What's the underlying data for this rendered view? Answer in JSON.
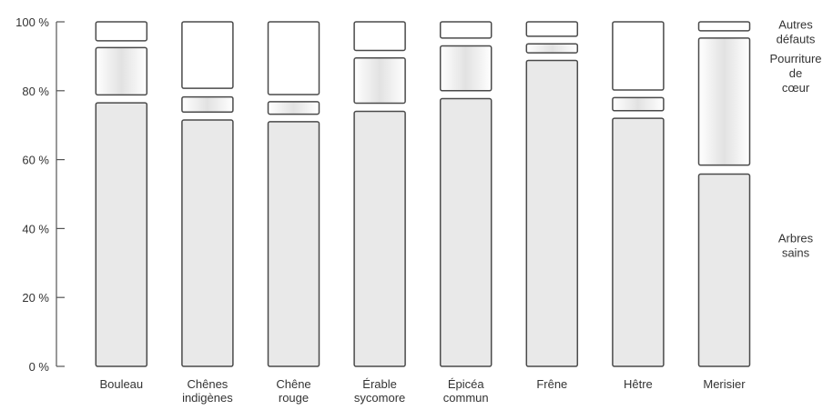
{
  "chart_data": {
    "type": "bar",
    "stacked": true,
    "categories": [
      "Bouleau",
      "Chênes indigènes",
      "Chêne rouge",
      "Érable sycomore",
      "Épicéa commun",
      "Frêne",
      "Hêtre",
      "Merisier"
    ],
    "segments": [
      [
        {
          "from": 0,
          "to": 76.5,
          "kind": "solid"
        },
        {
          "from": 78.8,
          "to": 92.5,
          "kind": "gradient"
        },
        {
          "from": 94.5,
          "to": 100,
          "kind": "open"
        }
      ],
      [
        {
          "from": 0,
          "to": 71.5,
          "kind": "solid"
        },
        {
          "from": 73.8,
          "to": 78.2,
          "kind": "gradient"
        },
        {
          "from": 80.7,
          "to": 100,
          "kind": "open"
        }
      ],
      [
        {
          "from": 0,
          "to": 71.0,
          "kind": "solid"
        },
        {
          "from": 73.2,
          "to": 76.8,
          "kind": "gradient"
        },
        {
          "from": 78.9,
          "to": 100,
          "kind": "open"
        }
      ],
      [
        {
          "from": 0,
          "to": 74.0,
          "kind": "solid"
        },
        {
          "from": 76.4,
          "to": 89.5,
          "kind": "gradient"
        },
        {
          "from": 91.7,
          "to": 100,
          "kind": "open"
        }
      ],
      [
        {
          "from": 0,
          "to": 77.7,
          "kind": "solid"
        },
        {
          "from": 80.0,
          "to": 93.0,
          "kind": "gradient"
        },
        {
          "from": 95.3,
          "to": 100,
          "kind": "open"
        }
      ],
      [
        {
          "from": 0,
          "to": 88.8,
          "kind": "solid"
        },
        {
          "from": 91.0,
          "to": 93.6,
          "kind": "gradient"
        },
        {
          "from": 95.8,
          "to": 100,
          "kind": "open"
        }
      ],
      [
        {
          "from": 0,
          "to": 72.0,
          "kind": "solid"
        },
        {
          "from": 74.2,
          "to": 78.0,
          "kind": "gradient"
        },
        {
          "from": 80.2,
          "to": 100,
          "kind": "open"
        }
      ],
      [
        {
          "from": 0,
          "to": 55.8,
          "kind": "solid"
        },
        {
          "from": 58.4,
          "to": 95.3,
          "kind": "gradient"
        },
        {
          "from": 97.4,
          "to": 100,
          "kind": "open"
        }
      ]
    ],
    "y_ticks": [
      0,
      20,
      40,
      60,
      80,
      100
    ],
    "y_tick_labels": [
      "0 %",
      "20 %",
      "40 %",
      "60 %",
      "80 %",
      "100 %"
    ],
    "ylim": [
      0,
      100
    ],
    "legend": [
      {
        "label": "Autres défauts",
        "level": 97
      },
      {
        "label": "Pourriture de cœur",
        "level": 85
      },
      {
        "label": "Arbres sains",
        "level": 35
      }
    ],
    "legend_placement": "right",
    "colors": {
      "solid": "#e9e9e9",
      "gradient_edge": "#ffffff",
      "gradient_mid": "#e2e2e2",
      "open": "#ffffff",
      "outline": "#4a4a4a",
      "axis": "#555555"
    }
  }
}
